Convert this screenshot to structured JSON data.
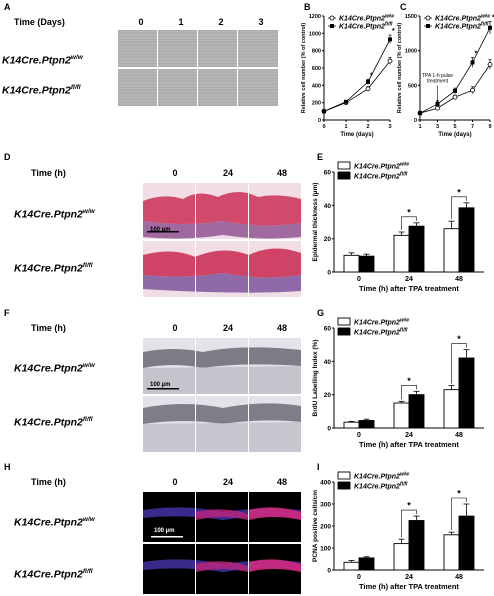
{
  "panels": {
    "A": {
      "letter": "A",
      "time_label": "Time (Days)",
      "cols": [
        "0",
        "1",
        "2",
        "3"
      ]
    },
    "B": {
      "letter": "B"
    },
    "C": {
      "letter": "C"
    },
    "D": {
      "letter": "D",
      "time_label": "Time (h)",
      "cols": [
        "0",
        "24",
        "48"
      ],
      "scale": "100 µm"
    },
    "E": {
      "letter": "E"
    },
    "F": {
      "letter": "F",
      "time_label": "Time (h)",
      "cols": [
        "0",
        "24",
        "48"
      ],
      "scale": "100 µm"
    },
    "G": {
      "letter": "G"
    },
    "H": {
      "letter": "H",
      "time_label": "Time (h)",
      "cols": [
        "0",
        "24",
        "48"
      ],
      "scale": "100 µm"
    },
    "I": {
      "letter": "I"
    }
  },
  "genotypes": {
    "ww_base": "K14Cre.Ptpn2",
    "ww_sup": "w/w",
    "ff_base": "K14Cre.Ptpn2",
    "ff_sup": "fl/fl"
  },
  "chart_data": [
    {
      "id": "B",
      "type": "line",
      "xlabel": "Time (days)",
      "ylabel": "Relative cell number (% of control)",
      "x": [
        0,
        1,
        2,
        3
      ],
      "xticks": [
        "0",
        "1",
        "2",
        "3"
      ],
      "ylim": [
        0,
        1200
      ],
      "yticks": [
        "0",
        "200",
        "400",
        "600",
        "800",
        "1000",
        "1200"
      ],
      "series": [
        {
          "name": "K14Cre.Ptpn2w/w",
          "values": [
            100,
            200,
            360,
            680
          ],
          "err": [
            10,
            15,
            25,
            40
          ],
          "marker": "open"
        },
        {
          "name": "K14Cre.Ptpn2fl/fl",
          "values": [
            100,
            210,
            440,
            930
          ],
          "err": [
            10,
            15,
            30,
            50
          ],
          "marker": "filled"
        }
      ],
      "annotations": [
        "*",
        "*"
      ],
      "legend": "top-left"
    },
    {
      "id": "C",
      "type": "line",
      "xlabel": "Time (days)",
      "ylabel": "Relative cell number (% of control)",
      "x": [
        1,
        3,
        5,
        7,
        9
      ],
      "xticks": [
        "1",
        "3",
        "5",
        "7",
        "9"
      ],
      "ylim": [
        0,
        1500
      ],
      "yticks": [
        "0",
        "500",
        "1000",
        "1500"
      ],
      "series": [
        {
          "name": "K14Cre.Ptpn2w/w",
          "values": [
            100,
            170,
            330,
            430,
            800
          ],
          "err": [
            10,
            20,
            30,
            50,
            70
          ],
          "marker": "open"
        },
        {
          "name": "K14Cre.Ptpn2fl/fl",
          "values": [
            100,
            230,
            420,
            830,
            1330
          ],
          "err": [
            10,
            25,
            40,
            70,
            90
          ],
          "marker": "filled"
        }
      ],
      "annotations": [
        "*",
        "*"
      ],
      "annotation_text": [
        "TPA 1-h pulse",
        "treatment"
      ],
      "legend": "top-left"
    },
    {
      "id": "E",
      "type": "bar",
      "xlabel": "Time (h) after TPA treatment",
      "ylabel": "Epidermal thickness (µm)",
      "categories": [
        "0",
        "24",
        "48"
      ],
      "ylim": [
        0,
        60
      ],
      "yticks": [
        "0",
        "20",
        "40",
        "60"
      ],
      "series": [
        {
          "name": "K14Cre.Ptpn2w/w",
          "values": [
            10,
            22,
            26
          ],
          "err": [
            1.5,
            2,
            4.5
          ],
          "fill": "white"
        },
        {
          "name": "K14Cre.Ptpn2fl/fl",
          "values": [
            9.5,
            27.5,
            38.5
          ],
          "err": [
            1.2,
            2,
            3
          ],
          "fill": "black"
        }
      ],
      "annotations": [
        "*",
        "*"
      ],
      "legend": "top-left"
    },
    {
      "id": "G",
      "type": "bar",
      "xlabel": "Time (h) after TPA treatment",
      "ylabel": "BrdU Labelling Index (%)",
      "categories": [
        "0",
        "24",
        "48"
      ],
      "ylim": [
        0,
        60
      ],
      "yticks": [
        "0",
        "20",
        "40",
        "60"
      ],
      "series": [
        {
          "name": "K14Cre.Ptpn2w/w",
          "values": [
            3.5,
            15,
            23
          ],
          "err": [
            0.5,
            1,
            2.5
          ],
          "fill": "white"
        },
        {
          "name": "K14Cre.Ptpn2fl/fl",
          "values": [
            4.5,
            20,
            42
          ],
          "err": [
            0.8,
            2,
            5
          ],
          "fill": "black"
        }
      ],
      "annotations": [
        "*",
        "*"
      ],
      "legend": "top-left"
    },
    {
      "id": "I",
      "type": "bar",
      "xlabel": "Time (h) after TPA treatment",
      "ylabel": "PCNA positive cells/cm",
      "categories": [
        "0",
        "24",
        "48"
      ],
      "ylim": [
        0,
        400
      ],
      "yticks": [
        "0",
        "100",
        "200",
        "300",
        "400"
      ],
      "series": [
        {
          "name": "K14Cre.Ptpn2w/w",
          "values": [
            35,
            120,
            160
          ],
          "err": [
            8,
            20,
            12
          ],
          "fill": "white"
        },
        {
          "name": "K14Cre.Ptpn2fl/fl",
          "values": [
            55,
            225,
            245
          ],
          "err": [
            5,
            20,
            55
          ],
          "fill": "black"
        }
      ],
      "annotations": [
        "*",
        "*"
      ],
      "legend": "top-left"
    }
  ]
}
